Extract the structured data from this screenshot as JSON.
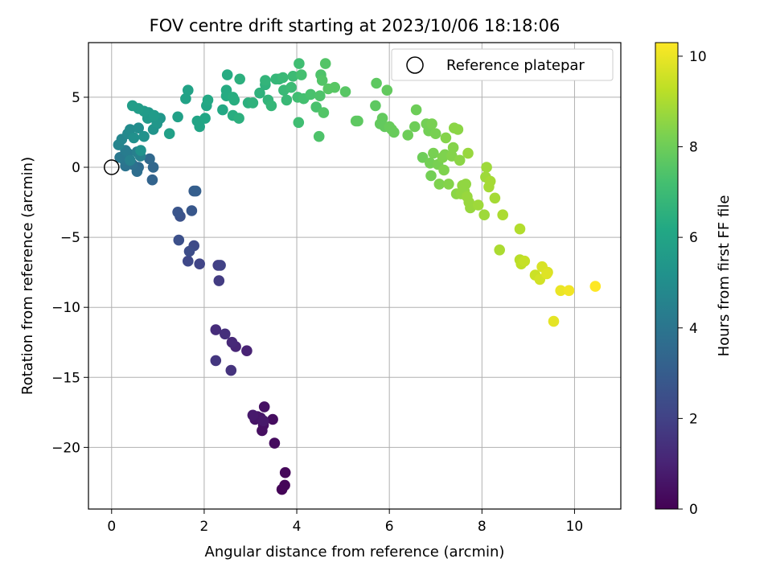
{
  "chart_data": {
    "type": "scatter",
    "title": "FOV centre drift starting at 2023/10/06 18:18:06",
    "xlabel": "Angular distance from reference (arcmin)",
    "ylabel": "Rotation from reference (arcmin)",
    "xlim": [
      -0.5,
      11.0
    ],
    "ylim": [
      -24.4,
      8.9
    ],
    "x_ticks": [
      0,
      2,
      4,
      6,
      8,
      10
    ],
    "y_ticks": [
      5,
      0,
      -5,
      -10,
      -15,
      -20
    ],
    "x_tick_labels": [
      "0",
      "2",
      "4",
      "6",
      "8",
      "10"
    ],
    "y_tick_labels": [
      "5",
      "0",
      "−5",
      "−10",
      "−15",
      "−20"
    ],
    "grid": true,
    "legend": {
      "placement": "top-right",
      "label": "Reference platepar"
    },
    "reference_point": {
      "x": 0.0,
      "y": 0.0
    },
    "colorbar": {
      "label": "Hours from first FF file",
      "range": [
        0,
        10.3
      ],
      "ticks": [
        0,
        2,
        4,
        6,
        8,
        10
      ],
      "tick_labels": [
        "0",
        "2",
        "4",
        "6",
        "8",
        "10"
      ],
      "colormap": "viridis"
    },
    "points": [
      [
        3.68,
        -23.0,
        0.1
      ],
      [
        3.74,
        -22.7,
        0.15
      ],
      [
        3.75,
        -21.8,
        0.2
      ],
      [
        3.52,
        -19.7,
        0.3
      ],
      [
        3.48,
        -18.0,
        0.35
      ],
      [
        3.25,
        -18.8,
        0.4
      ],
      [
        3.28,
        -18.4,
        0.45
      ],
      [
        3.3,
        -17.1,
        0.5
      ],
      [
        3.1,
        -18.0,
        0.55
      ],
      [
        3.15,
        -17.8,
        0.6
      ],
      [
        3.22,
        -17.9,
        0.65
      ],
      [
        3.28,
        -18.1,
        0.7
      ],
      [
        3.05,
        -17.7,
        0.75
      ],
      [
        2.92,
        -13.1,
        1.0
      ],
      [
        2.68,
        -12.8,
        1.1
      ],
      [
        2.6,
        -12.5,
        1.2
      ],
      [
        2.25,
        -11.6,
        1.3
      ],
      [
        2.45,
        -11.9,
        1.4
      ],
      [
        2.58,
        -14.5,
        1.5
      ],
      [
        2.25,
        -13.8,
        1.6
      ],
      [
        2.32,
        -8.1,
        1.8
      ],
      [
        2.3,
        -7.0,
        1.9
      ],
      [
        2.35,
        -7.0,
        2.0
      ],
      [
        1.9,
        -6.9,
        2.1
      ],
      [
        1.65,
        -6.7,
        2.2
      ],
      [
        1.78,
        -5.6,
        2.3
      ],
      [
        1.68,
        -6.0,
        2.4
      ],
      [
        1.45,
        -5.2,
        2.5
      ],
      [
        1.48,
        -3.5,
        2.6
      ],
      [
        1.43,
        -3.2,
        2.7
      ],
      [
        1.73,
        -3.1,
        2.8
      ],
      [
        1.78,
        -1.7,
        3.0
      ],
      [
        1.82,
        -1.7,
        3.1
      ],
      [
        0.88,
        -0.9,
        3.3
      ],
      [
        0.9,
        0.0,
        3.4
      ],
      [
        0.82,
        0.6,
        3.5
      ],
      [
        0.58,
        0.0,
        3.6
      ],
      [
        0.55,
        -0.3,
        3.7
      ],
      [
        0.45,
        0.2,
        3.8
      ],
      [
        0.3,
        0.1,
        3.9
      ],
      [
        0.28,
        0.5,
        4.0
      ],
      [
        0.18,
        0.7,
        4.1
      ],
      [
        0.35,
        1.0,
        4.2
      ],
      [
        0.3,
        1.2,
        4.3
      ],
      [
        0.55,
        1.1,
        4.4
      ],
      [
        0.62,
        0.8,
        4.5
      ],
      [
        0.4,
        0.5,
        4.5
      ],
      [
        0.15,
        1.6,
        4.6
      ],
      [
        0.22,
        2.0,
        4.7
      ],
      [
        0.35,
        2.4,
        4.8
      ],
      [
        0.4,
        2.7,
        4.9
      ],
      [
        0.58,
        2.8,
        5.0
      ],
      [
        0.48,
        2.1,
        5.1
      ],
      [
        0.7,
        2.2,
        5.2
      ],
      [
        0.63,
        1.2,
        5.2
      ],
      [
        0.9,
        2.7,
        5.3
      ],
      [
        0.98,
        3.1,
        5.3
      ],
      [
        0.98,
        3.2,
        5.4
      ],
      [
        1.05,
        3.5,
        5.4
      ],
      [
        0.78,
        3.5,
        5.5
      ],
      [
        0.8,
        3.9,
        5.5
      ],
      [
        0.92,
        3.7,
        5.6
      ],
      [
        0.7,
        4.0,
        5.6
      ],
      [
        0.58,
        4.2,
        5.7
      ],
      [
        0.45,
        4.4,
        5.7
      ],
      [
        1.25,
        2.4,
        5.8
      ],
      [
        1.43,
        3.6,
        5.8
      ],
      [
        1.6,
        4.9,
        5.9
      ],
      [
        1.65,
        5.5,
        5.9
      ],
      [
        1.85,
        3.3,
        6.0
      ],
      [
        1.9,
        2.9,
        6.0
      ],
      [
        2.02,
        3.5,
        6.1
      ],
      [
        2.05,
        4.4,
        6.1
      ],
      [
        2.08,
        4.8,
        6.2
      ],
      [
        2.4,
        4.1,
        6.2
      ],
      [
        2.48,
        5.1,
        6.3
      ],
      [
        2.48,
        5.5,
        6.3
      ],
      [
        2.5,
        6.6,
        6.3
      ],
      [
        2.62,
        5.0,
        6.4
      ],
      [
        2.65,
        4.8,
        6.4
      ],
      [
        2.62,
        3.7,
        6.4
      ],
      [
        2.75,
        3.5,
        6.5
      ],
      [
        2.77,
        6.3,
        6.5
      ],
      [
        2.95,
        4.6,
        6.5
      ],
      [
        3.05,
        4.6,
        6.6
      ],
      [
        3.2,
        5.3,
        6.6
      ],
      [
        3.32,
        5.9,
        6.6
      ],
      [
        3.32,
        6.2,
        6.7
      ],
      [
        3.38,
        4.8,
        6.7
      ],
      [
        3.45,
        4.4,
        6.8
      ],
      [
        3.55,
        6.3,
        6.8
      ],
      [
        3.62,
        6.3,
        6.8
      ],
      [
        3.7,
        6.4,
        6.9
      ],
      [
        3.72,
        5.5,
        6.9
      ],
      [
        3.78,
        4.8,
        6.9
      ],
      [
        3.88,
        5.7,
        7.0
      ],
      [
        3.92,
        6.5,
        7.0
      ],
      [
        4.02,
        5.0,
        7.1
      ],
      [
        4.04,
        3.2,
        7.1
      ],
      [
        4.05,
        7.4,
        7.1
      ],
      [
        4.1,
        6.6,
        7.2
      ],
      [
        4.15,
        4.9,
        7.2
      ],
      [
        4.3,
        5.2,
        7.3
      ],
      [
        4.42,
        4.3,
        7.3
      ],
      [
        4.48,
        2.2,
        7.4
      ],
      [
        4.5,
        5.1,
        7.4
      ],
      [
        4.52,
        6.6,
        7.4
      ],
      [
        4.55,
        6.2,
        7.5
      ],
      [
        4.58,
        3.9,
        7.5
      ],
      [
        4.62,
        7.4,
        7.5
      ],
      [
        4.68,
        5.6,
        7.6
      ],
      [
        4.82,
        5.7,
        7.6
      ],
      [
        5.05,
        5.4,
        7.6
      ],
      [
        5.28,
        3.3,
        7.7
      ],
      [
        5.32,
        3.3,
        7.7
      ],
      [
        5.7,
        4.4,
        7.7
      ],
      [
        5.72,
        6.0,
        7.7
      ],
      [
        5.8,
        3.1,
        7.8
      ],
      [
        5.85,
        3.5,
        7.8
      ],
      [
        5.9,
        2.9,
        7.8
      ],
      [
        5.95,
        5.5,
        7.8
      ],
      [
        6.0,
        2.9,
        7.9
      ],
      [
        6.05,
        2.7,
        7.9
      ],
      [
        6.1,
        2.5,
        7.9
      ],
      [
        6.4,
        2.3,
        8.0
      ],
      [
        6.55,
        2.9,
        8.0
      ],
      [
        6.58,
        4.1,
        8.0
      ],
      [
        6.72,
        0.7,
        8.0
      ],
      [
        6.8,
        3.1,
        8.1
      ],
      [
        6.85,
        2.6,
        8.1
      ],
      [
        6.88,
        0.3,
        8.1
      ],
      [
        6.9,
        -0.6,
        8.1
      ],
      [
        6.92,
        3.1,
        8.2
      ],
      [
        6.95,
        1.0,
        8.2
      ],
      [
        7.0,
        2.4,
        8.2
      ],
      [
        7.05,
        0.2,
        8.2
      ],
      [
        7.08,
        -1.2,
        8.3
      ],
      [
        7.15,
        0.7,
        8.3
      ],
      [
        7.18,
        -0.2,
        8.3
      ],
      [
        7.2,
        0.9,
        8.3
      ],
      [
        7.22,
        2.1,
        8.4
      ],
      [
        7.28,
        -1.2,
        8.4
      ],
      [
        7.35,
        0.8,
        8.4
      ],
      [
        7.38,
        1.4,
        8.4
      ],
      [
        7.4,
        2.8,
        8.5
      ],
      [
        7.45,
        -1.9,
        8.5
      ],
      [
        7.48,
        2.7,
        8.5
      ],
      [
        7.52,
        0.5,
        8.5
      ],
      [
        7.55,
        -1.9,
        8.6
      ],
      [
        7.58,
        -1.3,
        8.6
      ],
      [
        7.62,
        -1.7,
        8.6
      ],
      [
        7.65,
        -1.2,
        8.6
      ],
      [
        7.68,
        -2.1,
        8.7
      ],
      [
        7.7,
        1.0,
        8.7
      ],
      [
        7.72,
        -2.5,
        8.7
      ],
      [
        7.75,
        -2.9,
        8.7
      ],
      [
        7.92,
        -2.7,
        8.8
      ],
      [
        8.05,
        -3.4,
        8.8
      ],
      [
        8.08,
        -0.7,
        8.8
      ],
      [
        8.1,
        0.0,
        8.8
      ],
      [
        8.15,
        -1.4,
        8.9
      ],
      [
        8.18,
        -1.0,
        8.9
      ],
      [
        8.28,
        -2.2,
        8.9
      ],
      [
        8.38,
        -5.9,
        9.0
      ],
      [
        8.45,
        -3.4,
        9.0
      ],
      [
        8.82,
        -4.4,
        9.1
      ],
      [
        8.82,
        -6.6,
        9.2
      ],
      [
        8.85,
        -6.9,
        9.3
      ],
      [
        8.92,
        -6.7,
        9.4
      ],
      [
        9.15,
        -7.7,
        9.5
      ],
      [
        9.25,
        -8.0,
        9.6
      ],
      [
        9.3,
        -7.1,
        9.7
      ],
      [
        9.42,
        -7.5,
        9.7
      ],
      [
        9.4,
        -7.6,
        9.8
      ],
      [
        9.55,
        -11.0,
        9.9
      ],
      [
        9.7,
        -8.8,
        10.0
      ],
      [
        9.88,
        -8.8,
        10.1
      ],
      [
        10.45,
        -8.5,
        10.3
      ]
    ]
  }
}
